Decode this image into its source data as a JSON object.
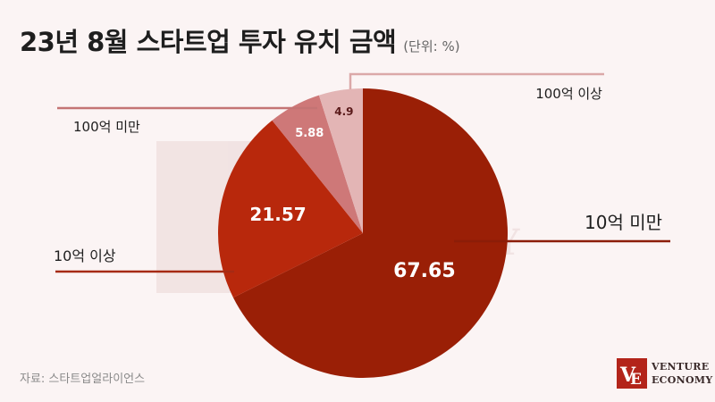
{
  "header": {
    "title": "23년 8월 스타트업 투자 유치 금액",
    "unit": "(단위: %)"
  },
  "source": "자료: 스타트업얼라이언스",
  "logo": {
    "line1": "VENTURE",
    "line2": "ECONOMY"
  },
  "colors": {
    "background": "#fbf4f4",
    "slice_10b_under": "#9a1f06",
    "slice_10b_over": "#b8280c",
    "slice_100b_under": "#ce7878",
    "slice_100b_over": "#e3b5b5"
  },
  "chart_data": {
    "type": "pie",
    "title": "23년 8월 스타트업 투자 유치 금액",
    "unit": "%",
    "start_angle": "12 o'clock, clockwise",
    "slices": [
      {
        "label": "10억 미만",
        "value": 67.65,
        "color": "#9a1f06"
      },
      {
        "label": "10억 이상",
        "value": 21.57,
        "color": "#b8280c"
      },
      {
        "label": "100억 미만",
        "value": 5.88,
        "color": "#ce7878"
      },
      {
        "label": "100억 이상",
        "value": 4.9,
        "color": "#e3b5b5"
      }
    ]
  }
}
